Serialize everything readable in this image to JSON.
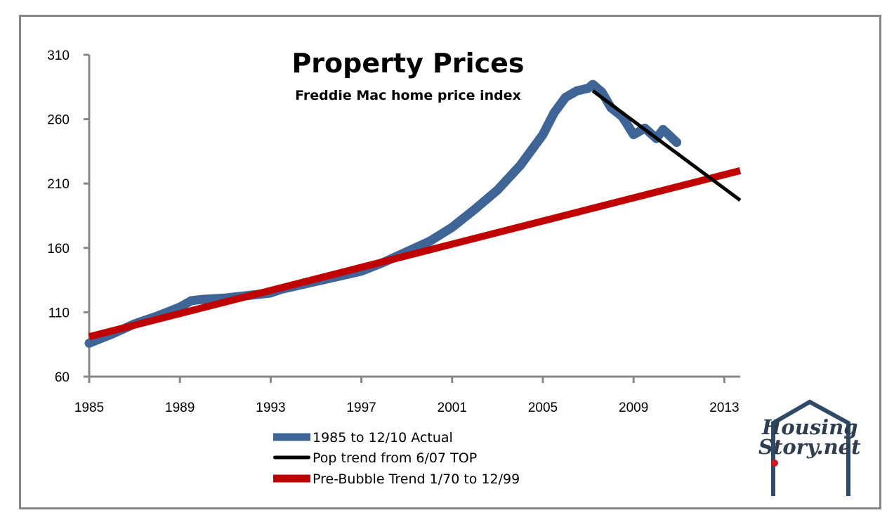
{
  "chart_data": {
    "type": "line",
    "title": "Property Prices",
    "subtitle": "Freddie Mac home price index",
    "xlabel": "",
    "ylabel": "",
    "xlim": [
      1985,
      2014
    ],
    "ylim": [
      60,
      310
    ],
    "x_ticks": [
      1985,
      1989,
      1993,
      1997,
      2001,
      2005,
      2009,
      2013
    ],
    "x_tick_labels": [
      "1985",
      "1989",
      "1993",
      "1997",
      "2001",
      "2005",
      "2009",
      "2013"
    ],
    "y_ticks": [
      60,
      110,
      160,
      210,
      260,
      310
    ],
    "y_tick_labels": [
      "60",
      "110",
      "160",
      "210",
      "260",
      "310"
    ],
    "grid": false,
    "legend_position": "bottom-center",
    "series": [
      {
        "name": "1985 to 12/10 Actual",
        "color": "#3f6496",
        "x": [
          1985,
          1986,
          1987,
          1988,
          1989,
          1989.5,
          1990,
          1991,
          1992,
          1993,
          1993.5,
          1994,
          1995,
          1996,
          1997,
          1998,
          1999,
          2000,
          2001,
          2002,
          2003,
          2004,
          2005,
          2005.5,
          2006,
          2006.5,
          2007,
          2007.2,
          2007.6,
          2008,
          2008.5,
          2009,
          2009.5,
          2010,
          2010.3,
          2010.9
        ],
        "values": [
          86,
          93,
          101,
          107,
          114,
          119,
          120,
          121,
          123,
          125,
          128,
          130,
          134,
          138,
          142,
          149,
          157,
          165,
          176,
          190,
          205,
          224,
          248,
          265,
          277,
          282,
          284,
          287,
          281,
          269,
          262,
          248,
          253,
          245,
          252,
          242
        ]
      },
      {
        "name": "Pop trend from 6/07 TOP",
        "color": "#000000",
        "x": [
          2007.2,
          2013.7
        ],
        "values": [
          282,
          197
        ]
      },
      {
        "name": "Pre-Bubble Trend 1/70 to 12/99",
        "color": "#c00000",
        "x": [
          1985,
          2013.7
        ],
        "values": [
          91,
          220
        ]
      }
    ]
  },
  "logo": {
    "line1": "Housing",
    "line2": "Story.net"
  }
}
